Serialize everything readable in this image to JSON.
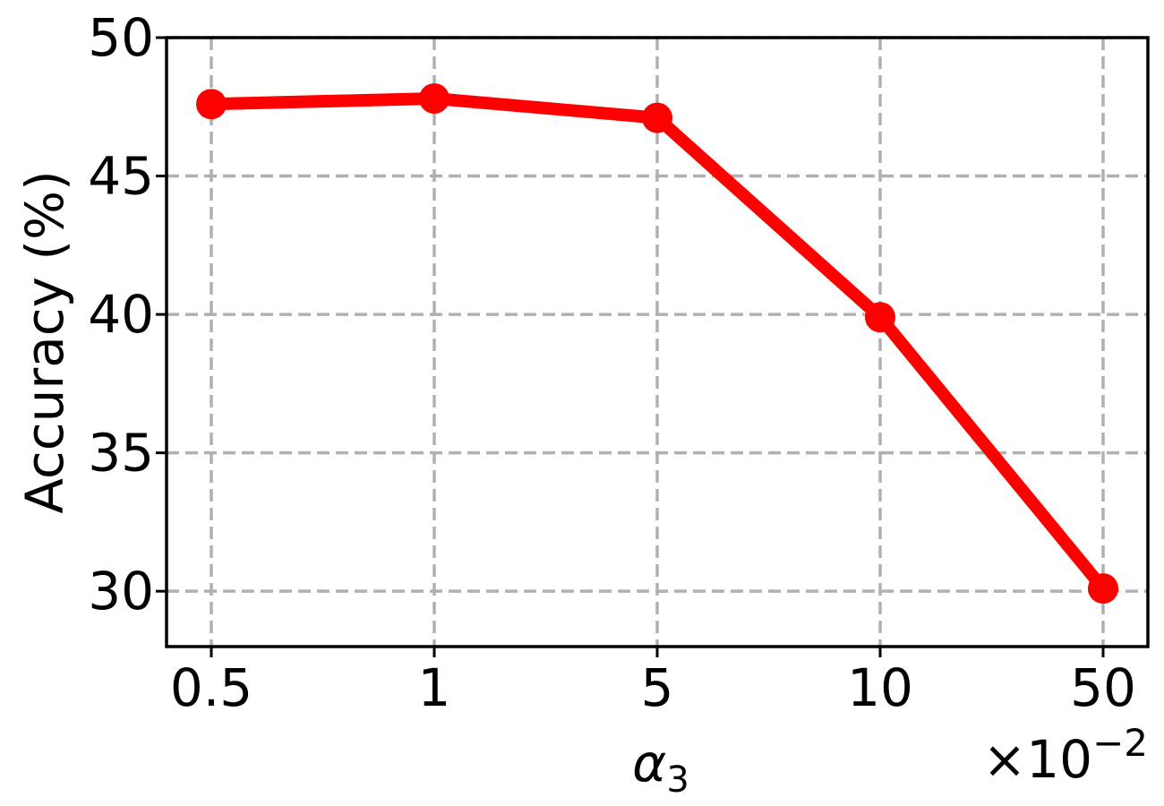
{
  "chart_data": {
    "type": "line",
    "x": [
      "0.5",
      "1",
      "5",
      "10",
      "50"
    ],
    "series": [
      {
        "values": [
          47.6,
          47.8,
          47.1,
          39.9,
          30.1
        ],
        "color": "#ff0000"
      }
    ],
    "xlabel": {
      "base": "α",
      "subscript": "3"
    },
    "x_multiplier": {
      "base": "×10",
      "exponent": "−2"
    },
    "ylabel": "Accuracy (%)",
    "ylim": [
      28,
      50
    ],
    "yticks": [
      "30",
      "35",
      "40",
      "45",
      "50"
    ],
    "grid": true,
    "colors": {
      "line": "#ff0000",
      "grid": "#b0b0b0",
      "frame": "#000000"
    }
  }
}
